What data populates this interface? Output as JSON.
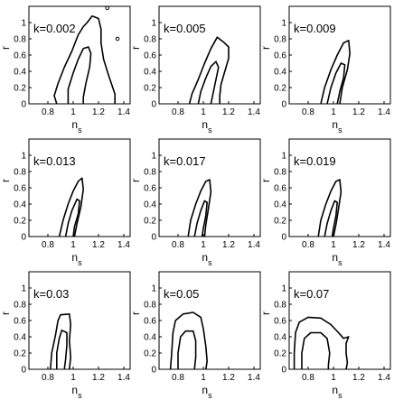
{
  "chart_data": [
    {
      "type": "contour",
      "k_label": "k=0.002",
      "xlabel": "n",
      "xlabel_sub": "s",
      "ylabel": "r",
      "xlim": [
        0.65,
        1.45
      ],
      "ylim": [
        0,
        1.2
      ],
      "xticks": [
        "0.8",
        "1",
        "1.2",
        "1.4"
      ],
      "yticks": [
        "0",
        "0.2",
        "0.4",
        "0.6",
        "0.8",
        "1"
      ],
      "contours": [
        {
          "level": "outer",
          "points": [
            [
              0.87,
              0
            ],
            [
              0.85,
              0.1
            ],
            [
              0.88,
              0.25
            ],
            [
              0.93,
              0.45
            ],
            [
              0.99,
              0.65
            ],
            [
              1.04,
              0.85
            ],
            [
              1.08,
              0.95
            ],
            [
              1.11,
              1.0
            ],
            [
              1.15,
              1.08
            ],
            [
              1.2,
              1.05
            ],
            [
              1.22,
              0.92
            ],
            [
              1.22,
              0.75
            ],
            [
              1.24,
              0.55
            ],
            [
              1.28,
              0.35
            ],
            [
              1.33,
              0.12
            ],
            [
              1.33,
              0
            ]
          ]
        },
        {
          "level": "inner",
          "points": [
            [
              0.96,
              0
            ],
            [
              0.96,
              0.18
            ],
            [
              1.0,
              0.38
            ],
            [
              1.04,
              0.55
            ],
            [
              1.08,
              0.68
            ],
            [
              1.12,
              0.7
            ],
            [
              1.14,
              0.62
            ],
            [
              1.13,
              0.45
            ],
            [
              1.1,
              0.25
            ],
            [
              1.08,
              0.08
            ],
            [
              1.08,
              0
            ]
          ]
        }
      ],
      "specks": [
        [
          1.27,
          1.18
        ],
        [
          1.35,
          0.8
        ]
      ]
    },
    {
      "type": "contour",
      "k_label": "k=0.005",
      "xlabel": "n",
      "xlabel_sub": "s",
      "ylabel": "r",
      "xlim": [
        0.65,
        1.45
      ],
      "ylim": [
        0,
        1.2
      ],
      "xticks": [
        "0.8",
        "1",
        "1.2",
        "1.4"
      ],
      "yticks": [
        "0",
        "0.2",
        "0.4",
        "0.6",
        "0.8",
        "1"
      ],
      "contours": [
        {
          "level": "outer",
          "points": [
            [
              0.89,
              0
            ],
            [
              0.91,
              0.12
            ],
            [
              0.96,
              0.3
            ],
            [
              1.01,
              0.5
            ],
            [
              1.06,
              0.68
            ],
            [
              1.11,
              0.82
            ],
            [
              1.16,
              0.76
            ],
            [
              1.2,
              0.7
            ],
            [
              1.2,
              0.56
            ],
            [
              1.17,
              0.4
            ],
            [
              1.14,
              0.24
            ],
            [
              1.13,
              0.1
            ],
            [
              1.13,
              0
            ]
          ]
        },
        {
          "level": "inner",
          "points": [
            [
              0.96,
              0
            ],
            [
              0.98,
              0.15
            ],
            [
              1.02,
              0.32
            ],
            [
              1.06,
              0.46
            ],
            [
              1.1,
              0.52
            ],
            [
              1.12,
              0.45
            ],
            [
              1.1,
              0.3
            ],
            [
              1.08,
              0.15
            ],
            [
              1.06,
              0
            ]
          ]
        }
      ]
    },
    {
      "type": "contour",
      "k_label": "k=0.009",
      "xlabel": "n",
      "xlabel_sub": "s",
      "ylabel": "r",
      "xlim": [
        0.65,
        1.45
      ],
      "ylim": [
        0,
        1.2
      ],
      "xticks": [
        "0.8",
        "1",
        "1.2",
        "1.4"
      ],
      "yticks": [
        "0",
        "0.2",
        "0.4",
        "0.6",
        "0.8",
        "1"
      ],
      "contours": [
        {
          "level": "outer",
          "points": [
            [
              0.9,
              0
            ],
            [
              0.93,
              0.2
            ],
            [
              0.98,
              0.42
            ],
            [
              1.03,
              0.6
            ],
            [
              1.08,
              0.75
            ],
            [
              1.12,
              0.78
            ],
            [
              1.13,
              0.62
            ],
            [
              1.11,
              0.42
            ],
            [
              1.07,
              0.2
            ],
            [
              1.05,
              0
            ]
          ]
        },
        {
          "level": "inner",
          "points": [
            [
              0.95,
              0
            ],
            [
              0.98,
              0.2
            ],
            [
              1.02,
              0.38
            ],
            [
              1.06,
              0.5
            ],
            [
              1.09,
              0.48
            ],
            [
              1.08,
              0.32
            ],
            [
              1.05,
              0.15
            ],
            [
              1.03,
              0
            ]
          ]
        }
      ]
    },
    {
      "type": "contour",
      "k_label": "k=0.013",
      "xlabel": "n",
      "xlabel_sub": "s",
      "ylabel": "r",
      "xlim": [
        0.65,
        1.45
      ],
      "ylim": [
        0,
        1.2
      ],
      "xticks": [
        "0.8",
        "1",
        "1.2",
        "1.4"
      ],
      "yticks": [
        "0",
        "0.2",
        "0.4",
        "0.6",
        "0.8",
        "1"
      ],
      "contours": [
        {
          "level": "outer",
          "points": [
            [
              0.89,
              0
            ],
            [
              0.92,
              0.2
            ],
            [
              0.96,
              0.4
            ],
            [
              1.0,
              0.56
            ],
            [
              1.04,
              0.68
            ],
            [
              1.07,
              0.72
            ],
            [
              1.08,
              0.58
            ],
            [
              1.06,
              0.36
            ],
            [
              1.03,
              0.16
            ],
            [
              1.01,
              0
            ]
          ]
        },
        {
          "level": "inner",
          "points": [
            [
              0.94,
              0
            ],
            [
              0.96,
              0.16
            ],
            [
              0.99,
              0.32
            ],
            [
              1.03,
              0.46
            ],
            [
              1.05,
              0.44
            ],
            [
              1.04,
              0.28
            ],
            [
              1.01,
              0.12
            ],
            [
              1.0,
              0
            ]
          ]
        }
      ]
    },
    {
      "type": "contour",
      "k_label": "k=0.017",
      "xlabel": "n",
      "xlabel_sub": "s",
      "ylabel": "r",
      "xlim": [
        0.65,
        1.45
      ],
      "ylim": [
        0,
        1.2
      ],
      "xticks": [
        "0.8",
        "1",
        "1.2",
        "1.4"
      ],
      "yticks": [
        "0",
        "0.2",
        "0.4",
        "0.6",
        "0.8",
        "1"
      ],
      "contours": [
        {
          "level": "outer",
          "points": [
            [
              0.88,
              0
            ],
            [
              0.9,
              0.2
            ],
            [
              0.94,
              0.4
            ],
            [
              0.98,
              0.56
            ],
            [
              1.02,
              0.68
            ],
            [
              1.05,
              0.7
            ],
            [
              1.06,
              0.55
            ],
            [
              1.04,
              0.34
            ],
            [
              1.02,
              0.15
            ],
            [
              1.01,
              0
            ]
          ]
        },
        {
          "level": "inner",
          "points": [
            [
              0.93,
              0
            ],
            [
              0.95,
              0.16
            ],
            [
              0.98,
              0.32
            ],
            [
              1.01,
              0.44
            ],
            [
              1.03,
              0.42
            ],
            [
              1.02,
              0.26
            ],
            [
              1.0,
              0.1
            ],
            [
              0.99,
              0
            ]
          ]
        }
      ]
    },
    {
      "type": "contour",
      "k_label": "k=0.019",
      "xlabel": "n",
      "xlabel_sub": "s",
      "ylabel": "r",
      "xlim": [
        0.65,
        1.45
      ],
      "ylim": [
        0,
        1.2
      ],
      "xticks": [
        "0.8",
        "1",
        "1.2",
        "1.4"
      ],
      "yticks": [
        "0",
        "0.2",
        "0.4",
        "0.6",
        "0.8",
        "1"
      ],
      "contours": [
        {
          "level": "outer",
          "points": [
            [
              0.88,
              0
            ],
            [
              0.9,
              0.2
            ],
            [
              0.94,
              0.4
            ],
            [
              0.98,
              0.56
            ],
            [
              1.02,
              0.68
            ],
            [
              1.05,
              0.7
            ],
            [
              1.06,
              0.55
            ],
            [
              1.04,
              0.34
            ],
            [
              1.02,
              0.15
            ],
            [
              1.0,
              0
            ]
          ]
        },
        {
          "level": "inner",
          "points": [
            [
              0.93,
              0
            ],
            [
              0.95,
              0.16
            ],
            [
              0.98,
              0.32
            ],
            [
              1.01,
              0.44
            ],
            [
              1.03,
              0.42
            ],
            [
              1.02,
              0.26
            ],
            [
              1.0,
              0.1
            ],
            [
              0.99,
              0
            ]
          ]
        }
      ]
    },
    {
      "type": "contour",
      "k_label": "k=0.03",
      "xlabel": "n",
      "xlabel_sub": "s",
      "ylabel": "r",
      "xlim": [
        0.65,
        1.45
      ],
      "ylim": [
        0,
        1.2
      ],
      "xticks": [
        "0.8",
        "1",
        "1.2",
        "1.4"
      ],
      "yticks": [
        "0",
        "0.2",
        "0.4",
        "0.6",
        "0.8",
        "1"
      ],
      "contours": [
        {
          "level": "outer",
          "points": [
            [
              0.82,
              0
            ],
            [
              0.83,
              0.2
            ],
            [
              0.86,
              0.42
            ],
            [
              0.88,
              0.6
            ],
            [
              0.9,
              0.67
            ],
            [
              0.97,
              0.68
            ],
            [
              0.98,
              0.55
            ],
            [
              0.97,
              0.35
            ],
            [
              0.98,
              0.15
            ],
            [
              0.97,
              0
            ]
          ]
        },
        {
          "level": "inner",
          "points": [
            [
              0.87,
              0
            ],
            [
              0.87,
              0.2
            ],
            [
              0.89,
              0.38
            ],
            [
              0.91,
              0.48
            ],
            [
              0.95,
              0.45
            ],
            [
              0.95,
              0.3
            ],
            [
              0.94,
              0.12
            ],
            [
              0.93,
              0
            ]
          ]
        }
      ]
    },
    {
      "type": "contour",
      "k_label": "k=0.05",
      "xlabel": "n",
      "xlabel_sub": "s",
      "ylabel": "r",
      "xlim": [
        0.65,
        1.45
      ],
      "ylim": [
        0,
        1.2
      ],
      "xticks": [
        "0.8",
        "1",
        "1.2",
        "1.4"
      ],
      "yticks": [
        "0",
        "0.2",
        "0.4",
        "0.6",
        "0.8",
        "1"
      ],
      "contours": [
        {
          "level": "outer",
          "points": [
            [
              0.74,
              0
            ],
            [
              0.75,
              0.2
            ],
            [
              0.76,
              0.45
            ],
            [
              0.78,
              0.6
            ],
            [
              0.84,
              0.68
            ],
            [
              0.92,
              0.7
            ],
            [
              0.98,
              0.64
            ],
            [
              1.0,
              0.5
            ],
            [
              1.02,
              0.28
            ],
            [
              1.03,
              0.1
            ],
            [
              1.02,
              0
            ]
          ]
        },
        {
          "level": "inner",
          "points": [
            [
              0.8,
              0
            ],
            [
              0.8,
              0.2
            ],
            [
              0.82,
              0.4
            ],
            [
              0.86,
              0.47
            ],
            [
              0.92,
              0.47
            ],
            [
              0.94,
              0.35
            ],
            [
              0.94,
              0.15
            ],
            [
              0.93,
              0
            ]
          ]
        }
      ]
    },
    {
      "type": "contour",
      "k_label": "k=0.07",
      "xlabel": "n",
      "xlabel_sub": "s",
      "ylabel": "r",
      "xlim": [
        0.65,
        1.45
      ],
      "ylim": [
        0,
        1.2
      ],
      "xticks": [
        "0.8",
        "1",
        "1.2",
        "1.4"
      ],
      "yticks": [
        "0",
        "0.2",
        "0.4",
        "0.6",
        "0.8",
        "1"
      ],
      "contours": [
        {
          "level": "outer",
          "points": [
            [
              0.69,
              0
            ],
            [
              0.69,
              0.2
            ],
            [
              0.7,
              0.45
            ],
            [
              0.73,
              0.58
            ],
            [
              0.8,
              0.64
            ],
            [
              0.9,
              0.63
            ],
            [
              0.98,
              0.55
            ],
            [
              1.04,
              0.45
            ],
            [
              1.08,
              0.38
            ],
            [
              1.12,
              0.4
            ],
            [
              1.1,
              0.32
            ],
            [
              1.1,
              0.2
            ],
            [
              1.11,
              0.08
            ],
            [
              1.1,
              0
            ]
          ]
        },
        {
          "level": "inner",
          "points": [
            [
              0.75,
              0
            ],
            [
              0.75,
              0.2
            ],
            [
              0.77,
              0.38
            ],
            [
              0.82,
              0.45
            ],
            [
              0.9,
              0.45
            ],
            [
              0.95,
              0.38
            ],
            [
              0.97,
              0.2
            ],
            [
              0.96,
              0.05
            ],
            [
              0.96,
              0
            ]
          ]
        }
      ]
    }
  ]
}
